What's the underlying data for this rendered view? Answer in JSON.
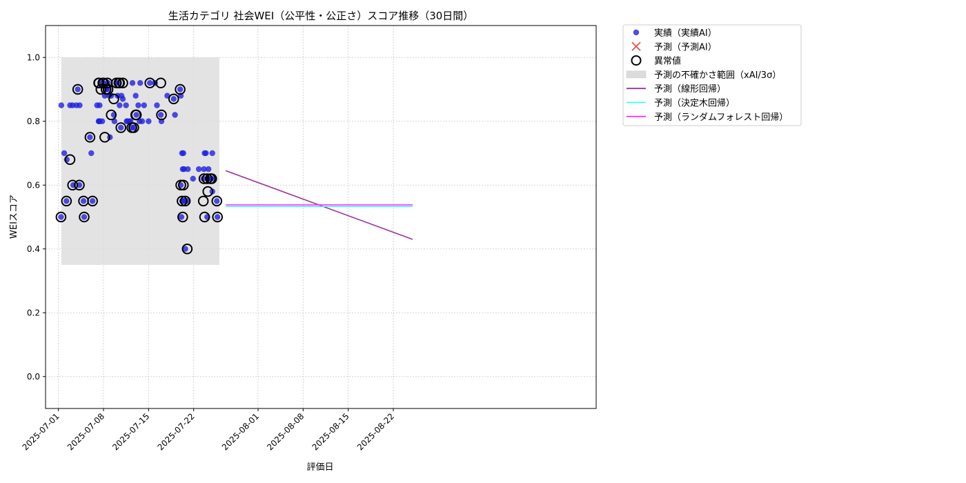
{
  "chart_data": {
    "type": "scatter",
    "title": "生活カテゴリ 社会WEI（公平性・公正さ）スコア推移（30日間）",
    "xlabel": "評価日",
    "ylabel": "WEIスコア",
    "xlim": [
      "2024-06-29",
      "2024-08-29"
    ],
    "ylim": [
      -0.1,
      1.1
    ],
    "x_ticks": [
      "2025-07-01",
      "2025-07-08",
      "2025-07-15",
      "2025-07-22",
      "2025-08-01",
      "2025-08-08",
      "2025-08-15",
      "2025-08-22"
    ],
    "y_ticks": [
      "0.0",
      "0.2",
      "0.4",
      "0.6",
      "0.8",
      "1.0"
    ],
    "grid": true,
    "legend_position": "outside-right-top",
    "legend": [
      {
        "label": "実績（実績AI）",
        "kind": "dot",
        "color": "#2020e0"
      },
      {
        "label": "予測（予測AI）",
        "kind": "cross",
        "color": "#e03030"
      },
      {
        "label": "異常値",
        "kind": "ring",
        "color": "#000000"
      },
      {
        "label": "予測の不確かさ範囲（xAI/3σ）",
        "kind": "band",
        "color": "#dcdcdc"
      },
      {
        "label": "予測（線形回帰）",
        "kind": "line",
        "color": "#9c2f9c"
      },
      {
        "label": "予測（決定木回帰）",
        "kind": "line",
        "color": "#33ffff"
      },
      {
        "label": "予測（ランダムフォレスト回帰）",
        "kind": "line",
        "color": "#ff33ff"
      }
    ],
    "band": {
      "x0": 0.45,
      "x1": 25.0,
      "y0": 0.35,
      "y1": 1.0,
      "color": "#dcdcdc"
    },
    "series": [
      {
        "name": "実績（実績AI）",
        "kind": "scatter",
        "color": "#2020e0",
        "x": [
          0.4,
          0.45,
          0.9,
          1.3,
          1.25,
          1.8,
          2.2,
          2.3,
          2.8,
          3.0,
          3.25,
          3.3,
          3.9,
          4.0,
          4.9,
          5.1,
          5.3,
          6.0,
          6.25,
          6.3,
          6.4,
          6.4,
          6.6,
          6.8,
          7.0,
          7.2,
          7.6,
          7.4,
          7.7,
          7.9,
          8.0,
          8.2,
          8.6,
          8.7,
          9.2,
          9.4,
          9.5,
          9.0,
          9.8,
          9.7,
          10.0,
          10.5,
          10.6,
          10.7,
          11.0,
          11.2,
          11.4,
          11.5,
          11.7,
          12.0,
          12.1,
          12.4,
          12.6,
          12.7,
          13.0,
          13.3,
          14.0,
          14.2,
          15.0,
          15.3,
          15.9,
          16.0,
          16.9,
          17.9,
          18.1,
          18.9,
          19.0,
          19.0,
          19.1,
          19.2,
          19.3,
          19.4,
          19.2,
          19.4,
          19.5,
          19.6,
          19.7,
          20.0,
          20.1,
          20.9,
          21.8,
          22.5,
          22.6,
          22.7,
          22.9,
          23.1,
          23.2,
          23.3,
          23.6,
          23.8,
          23.9,
          23.9,
          24.6,
          24.7
        ],
        "y": [
          0.5,
          0.85,
          0.7,
          0.68,
          0.55,
          0.85,
          0.85,
          0.6,
          0.85,
          0.9,
          0.6,
          0.85,
          0.55,
          0.5,
          0.75,
          0.7,
          0.55,
          0.85,
          0.8,
          0.8,
          0.8,
          0.85,
          0.92,
          0.8,
          0.92,
          0.88,
          0.9,
          0.9,
          0.92,
          0.88,
          0.75,
          0.88,
          0.82,
          0.8,
          0.88,
          0.92,
          0.85,
          0.92,
          0.88,
          0.78,
          0.87,
          0.85,
          0.8,
          0.8,
          0.8,
          0.8,
          0.78,
          0.92,
          0.78,
          0.88,
          0.82,
          0.85,
          0.8,
          0.92,
          0.8,
          0.85,
          0.8,
          0.92,
          0.92,
          0.85,
          0.82,
          0.8,
          0.88,
          0.87,
          0.82,
          0.9,
          0.88,
          0.6,
          0.5,
          0.7,
          0.65,
          0.7,
          0.55,
          0.55,
          0.65,
          0.55,
          0.4,
          0.55,
          0.65,
          0.62,
          0.65,
          0.62,
          0.65,
          0.7,
          0.7,
          0.5,
          0.62,
          0.65,
          0.62,
          0.62,
          0.7,
          0.58,
          0.55,
          0.5
        ]
      },
      {
        "name": "異常値",
        "kind": "anomaly",
        "color": "#000000",
        "x": [
          0.4,
          1.25,
          1.8,
          2.2,
          3.0,
          3.25,
          3.9,
          4.0,
          4.9,
          5.3,
          6.25,
          6.3,
          6.6,
          6.9,
          7.0,
          7.2,
          7.6,
          7.4,
          7.7,
          8.2,
          8.6,
          9.4,
          9.5,
          9.0,
          9.7,
          10.0,
          11.4,
          11.7,
          12.0,
          12.1,
          14.2,
          15.9,
          16.0,
          17.9,
          18.9,
          19.0,
          19.2,
          19.3,
          19.4,
          19.7,
          20.0,
          22.5,
          22.6,
          22.7,
          23.1,
          23.2,
          23.6,
          23.8,
          24.6,
          24.7
        ],
        "y": [
          0.5,
          0.55,
          0.68,
          0.6,
          0.9,
          0.6,
          0.55,
          0.5,
          0.75,
          0.55,
          0.92,
          0.92,
          0.9,
          0.92,
          0.92,
          0.75,
          0.92,
          0.9,
          0.9,
          0.82,
          0.87,
          0.92,
          0.92,
          0.92,
          0.78,
          0.92,
          0.78,
          0.78,
          0.82,
          0.82,
          0.92,
          0.92,
          0.82,
          0.87,
          0.9,
          0.6,
          0.55,
          0.5,
          0.6,
          0.55,
          0.4,
          0.55,
          0.62,
          0.5,
          0.62,
          0.58,
          0.62,
          0.62,
          0.55,
          0.5
        ]
      },
      {
        "name": "予測（線形回帰）",
        "kind": "line",
        "color": "#9c2f9c",
        "x": [
          0.0,
          29.0
        ],
        "y": [
          0.645,
          0.43
        ]
      },
      {
        "name": "予測（決定木回帰）",
        "kind": "line",
        "color": "#33ffff",
        "x": [
          0.0,
          29.0
        ],
        "y": [
          0.533,
          0.533
        ]
      },
      {
        "name": "予測（ランダムフォレスト回帰）",
        "kind": "line",
        "color": "#ff33ff",
        "x": [
          0.0,
          29.0
        ],
        "y": [
          0.538,
          0.538
        ]
      }
    ]
  }
}
